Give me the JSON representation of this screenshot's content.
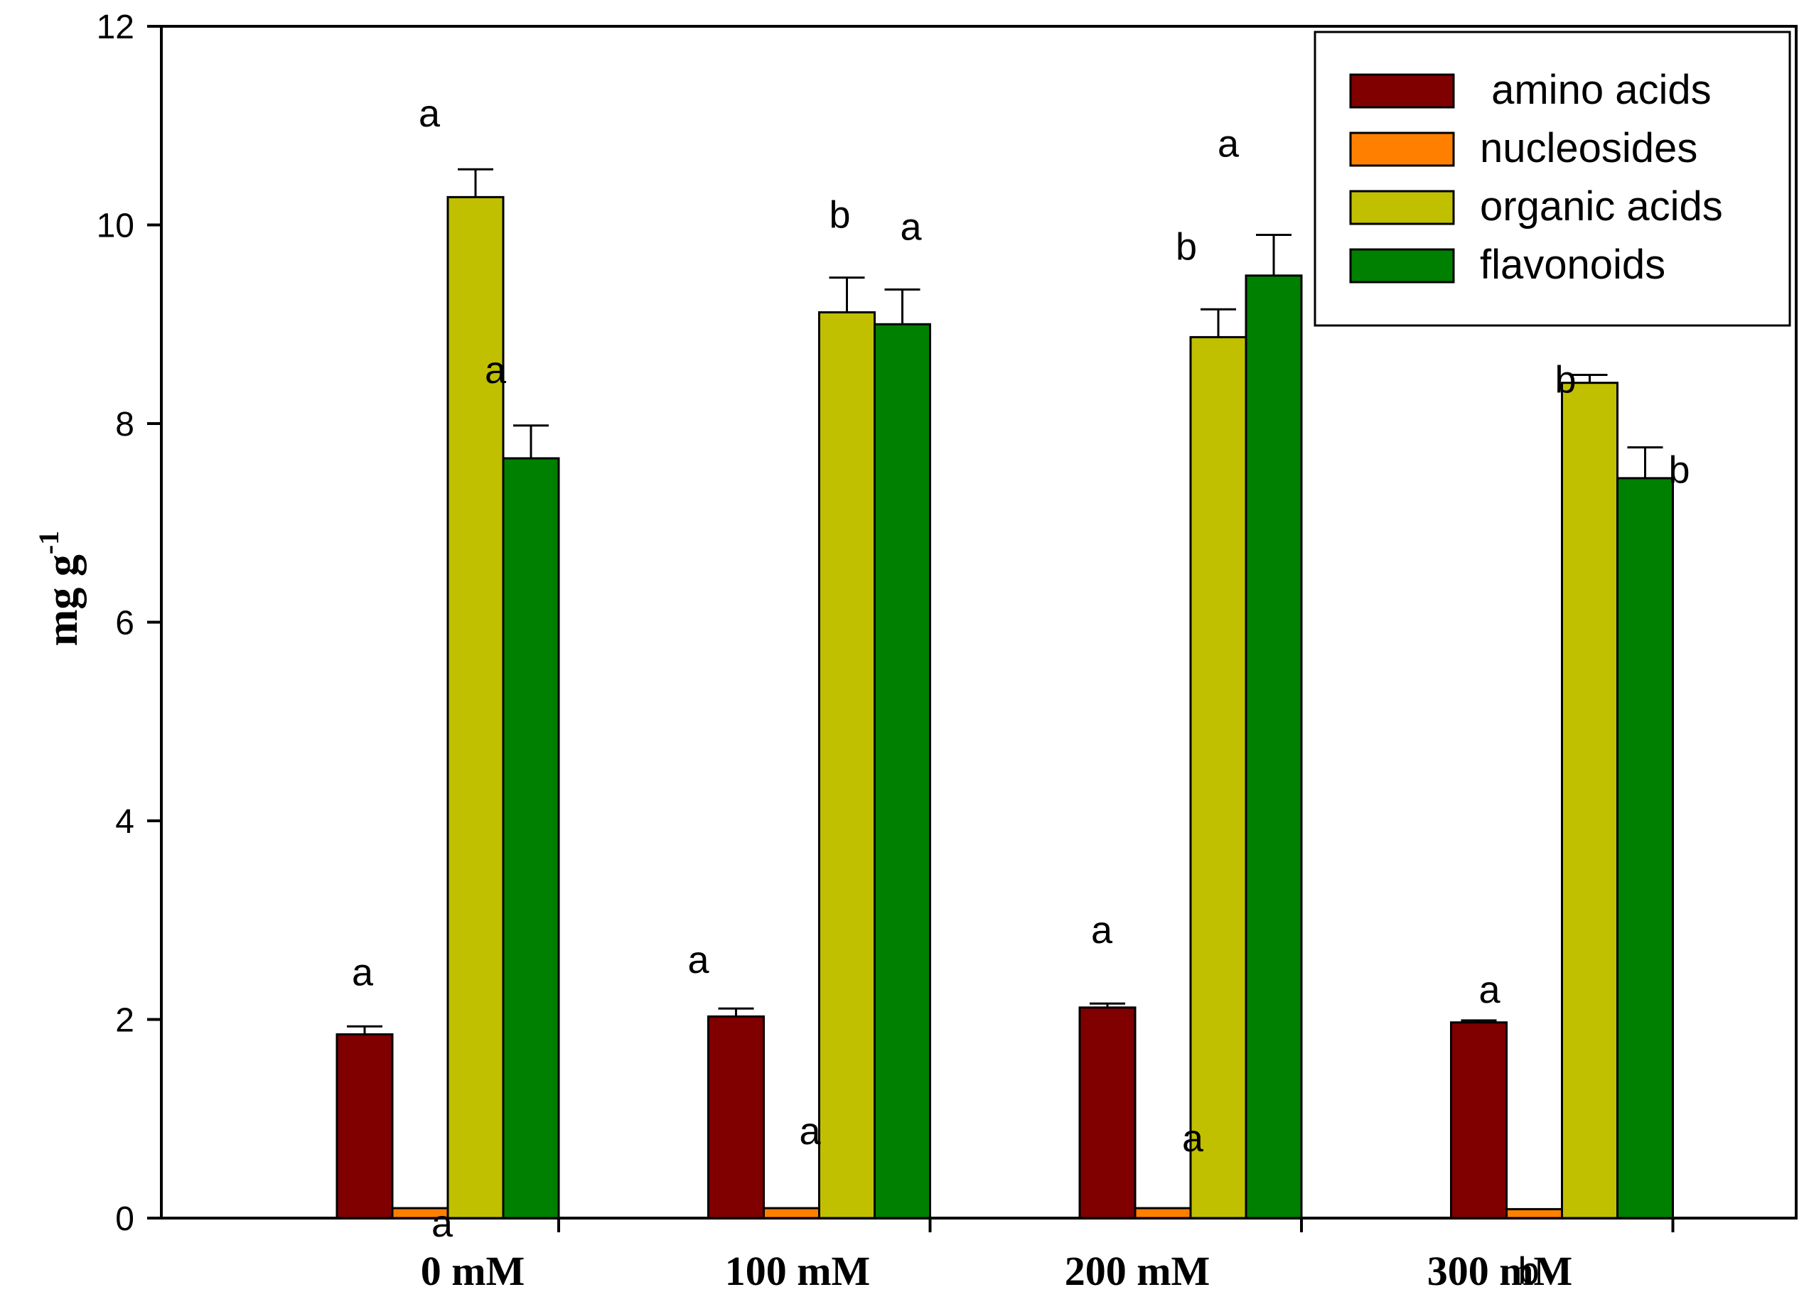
{
  "chart_data": {
    "type": "bar",
    "categories": [
      "0 mM",
      "100 mM",
      "200 mM",
      "300 mM"
    ],
    "ylabel": "mg g",
    "ylabel_superscript": "-1",
    "xlabel": "",
    "ylim": [
      0,
      12
    ],
    "yticks": [
      "0",
      "2",
      "4",
      "6",
      "8",
      "10",
      "12"
    ],
    "grid": false,
    "legend_position": "top-right",
    "series": [
      {
        "name": " amino acids",
        "color": "#800000",
        "values": [
          1.85,
          2.03,
          2.12,
          1.97
        ],
        "errors": [
          0.08,
          0.08,
          0.04,
          0.02
        ],
        "sig": [
          "a",
          "a",
          "a",
          "a"
        ]
      },
      {
        "name": "nucleosides",
        "color": "#ff8000",
        "values": [
          0.1,
          0.1,
          0.1,
          0.09
        ],
        "errors": [
          0,
          0,
          0,
          0
        ],
        "sig": [
          "a",
          "a",
          "a",
          "b"
        ]
      },
      {
        "name": "organic acids",
        "color": "#c0c000",
        "values": [
          10.28,
          9.12,
          8.87,
          8.41
        ],
        "errors": [
          0.28,
          0.35,
          0.28,
          0.08
        ],
        "sig": [
          "a",
          "b",
          "b",
          "b"
        ]
      },
      {
        "name": "flavonoids",
        "color": "#008000",
        "values": [
          7.65,
          9.0,
          9.49,
          7.45
        ],
        "errors": [
          0.33,
          0.35,
          0.41,
          0.31
        ],
        "sig": [
          "a",
          "a",
          "a",
          "b"
        ]
      }
    ]
  }
}
